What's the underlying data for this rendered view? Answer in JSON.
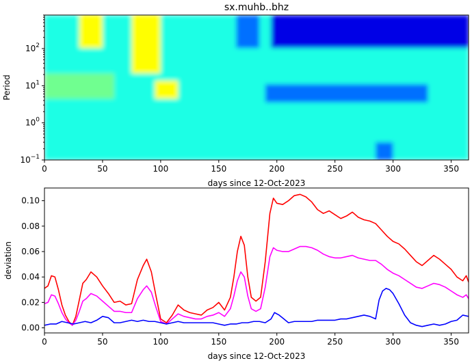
{
  "chart_data": [
    {
      "type": "heatmap",
      "title": "sx.muhb..bhz",
      "xlabel": "days since 12-Oct-2023",
      "ylabel": "Period",
      "xlim": [
        0,
        365
      ],
      "ylim": [
        0.1,
        800
      ],
      "yscale": "log",
      "x_ticks": [
        "0",
        "50",
        "100",
        "150",
        "200",
        "250",
        "300",
        "350"
      ],
      "y_ticks": [
        {
          "base": "10",
          "exp": "−1",
          "value": 0.1
        },
        {
          "base": "10",
          "exp": "0",
          "value": 1
        },
        {
          "base": "10",
          "exp": "1",
          "value": 10
        },
        {
          "base": "10",
          "exp": "2",
          "value": 100
        }
      ],
      "colormap": "jet",
      "features": [
        {
          "x": [
            30,
            50
          ],
          "period": [
            100,
            800
          ],
          "level": "high"
        },
        {
          "x": [
            75,
            100
          ],
          "period": [
            20,
            800
          ],
          "level": "high"
        },
        {
          "x": [
            0,
            60
          ],
          "period": [
            5,
            20
          ],
          "level": "slightly high"
        },
        {
          "x": [
            95,
            115
          ],
          "period": [
            5,
            15
          ],
          "level": "high"
        },
        {
          "x": [
            165,
            185
          ],
          "period": [
            100,
            800
          ],
          "level": "low"
        },
        {
          "x": [
            195,
            365
          ],
          "period": [
            100,
            800
          ],
          "level": "very low"
        },
        {
          "x": [
            190,
            330
          ],
          "period": [
            4,
            12
          ],
          "level": "low"
        },
        {
          "x": [
            285,
            300
          ],
          "period": [
            0.1,
            0.3
          ],
          "level": "low"
        }
      ]
    },
    {
      "type": "line",
      "xlabel": "days since 12-Oct-2023",
      "ylabel": "deviation",
      "xlim": [
        0,
        365
      ],
      "ylim": [
        -0.004,
        0.11
      ],
      "x_ticks": [
        "0",
        "50",
        "100",
        "150",
        "200",
        "250",
        "300",
        "350"
      ],
      "y_ticks": [
        "0.00",
        "0.02",
        "0.04",
        "0.06",
        "0.08",
        "0.10"
      ],
      "series": [
        {
          "color": "#ff0000",
          "x": [
            0,
            3,
            6,
            9,
            12,
            15,
            18,
            21,
            24,
            27,
            30,
            33,
            36,
            40,
            45,
            50,
            55,
            60,
            65,
            70,
            75,
            80,
            85,
            88,
            92,
            96,
            100,
            105,
            110,
            115,
            120,
            125,
            130,
            135,
            140,
            145,
            150,
            155,
            160,
            163,
            166,
            169,
            172,
            175,
            178,
            182,
            186,
            190,
            194,
            197,
            200,
            205,
            210,
            215,
            220,
            225,
            230,
            235,
            240,
            245,
            250,
            255,
            260,
            265,
            270,
            275,
            280,
            285,
            290,
            295,
            300,
            305,
            310,
            315,
            320,
            325,
            330,
            335,
            340,
            345,
            350,
            355,
            360,
            363,
            365
          ],
          "values": [
            0.031,
            0.033,
            0.041,
            0.04,
            0.03,
            0.018,
            0.01,
            0.005,
            0.002,
            0.009,
            0.022,
            0.035,
            0.038,
            0.044,
            0.04,
            0.033,
            0.027,
            0.02,
            0.021,
            0.018,
            0.019,
            0.038,
            0.049,
            0.054,
            0.044,
            0.025,
            0.007,
            0.004,
            0.01,
            0.018,
            0.014,
            0.012,
            0.011,
            0.01,
            0.014,
            0.016,
            0.02,
            0.014,
            0.024,
            0.04,
            0.06,
            0.072,
            0.065,
            0.04,
            0.024,
            0.021,
            0.024,
            0.052,
            0.09,
            0.102,
            0.098,
            0.097,
            0.1,
            0.104,
            0.105,
            0.103,
            0.099,
            0.093,
            0.09,
            0.092,
            0.089,
            0.086,
            0.088,
            0.091,
            0.087,
            0.085,
            0.084,
            0.082,
            0.077,
            0.072,
            0.068,
            0.066,
            0.062,
            0.057,
            0.052,
            0.049,
            0.053,
            0.057,
            0.054,
            0.05,
            0.046,
            0.04,
            0.037,
            0.041,
            0.036
          ]
        },
        {
          "color": "#ff00ff",
          "x": [
            0,
            3,
            6,
            9,
            12,
            15,
            18,
            21,
            24,
            27,
            30,
            33,
            36,
            40,
            45,
            50,
            55,
            60,
            65,
            70,
            75,
            80,
            85,
            88,
            92,
            96,
            100,
            105,
            110,
            115,
            120,
            125,
            130,
            135,
            140,
            145,
            150,
            155,
            160,
            163,
            166,
            169,
            172,
            175,
            178,
            182,
            186,
            190,
            194,
            197,
            200,
            205,
            210,
            215,
            220,
            225,
            230,
            235,
            240,
            245,
            250,
            255,
            260,
            265,
            270,
            275,
            280,
            285,
            290,
            295,
            300,
            305,
            310,
            315,
            320,
            325,
            330,
            335,
            340,
            345,
            350,
            355,
            360,
            363,
            365
          ],
          "values": [
            0.019,
            0.02,
            0.026,
            0.025,
            0.019,
            0.012,
            0.007,
            0.004,
            0.002,
            0.006,
            0.013,
            0.021,
            0.023,
            0.027,
            0.025,
            0.021,
            0.017,
            0.013,
            0.013,
            0.012,
            0.012,
            0.023,
            0.03,
            0.033,
            0.028,
            0.016,
            0.005,
            0.003,
            0.007,
            0.011,
            0.009,
            0.008,
            0.007,
            0.007,
            0.009,
            0.01,
            0.012,
            0.009,
            0.015,
            0.025,
            0.037,
            0.044,
            0.04,
            0.025,
            0.015,
            0.013,
            0.015,
            0.032,
            0.056,
            0.063,
            0.061,
            0.06,
            0.06,
            0.062,
            0.064,
            0.064,
            0.063,
            0.061,
            0.058,
            0.056,
            0.055,
            0.055,
            0.056,
            0.057,
            0.055,
            0.054,
            0.053,
            0.053,
            0.05,
            0.046,
            0.043,
            0.041,
            0.038,
            0.035,
            0.032,
            0.031,
            0.033,
            0.035,
            0.034,
            0.032,
            0.029,
            0.026,
            0.024,
            0.026,
            0.023
          ]
        },
        {
          "color": "#0000ff",
          "x": [
            0,
            5,
            10,
            15,
            20,
            25,
            30,
            35,
            40,
            45,
            50,
            55,
            60,
            65,
            70,
            75,
            80,
            85,
            90,
            95,
            100,
            105,
            110,
            115,
            120,
            125,
            130,
            135,
            140,
            145,
            150,
            155,
            160,
            165,
            170,
            175,
            180,
            185,
            190,
            195,
            198,
            202,
            206,
            210,
            215,
            220,
            225,
            230,
            235,
            240,
            245,
            250,
            255,
            260,
            265,
            270,
            275,
            280,
            285,
            288,
            291,
            294,
            297,
            300,
            305,
            310,
            315,
            320,
            325,
            330,
            335,
            340,
            345,
            350,
            355,
            360,
            365
          ],
          "values": [
            0.002,
            0.003,
            0.003,
            0.005,
            0.004,
            0.003,
            0.004,
            0.005,
            0.004,
            0.006,
            0.009,
            0.008,
            0.004,
            0.004,
            0.005,
            0.006,
            0.005,
            0.006,
            0.005,
            0.005,
            0.004,
            0.003,
            0.004,
            0.005,
            0.004,
            0.004,
            0.004,
            0.004,
            0.004,
            0.004,
            0.003,
            0.002,
            0.003,
            0.003,
            0.004,
            0.004,
            0.005,
            0.005,
            0.004,
            0.007,
            0.012,
            0.01,
            0.007,
            0.004,
            0.005,
            0.005,
            0.005,
            0.005,
            0.006,
            0.006,
            0.006,
            0.006,
            0.007,
            0.007,
            0.008,
            0.009,
            0.01,
            0.009,
            0.007,
            0.022,
            0.029,
            0.031,
            0.03,
            0.027,
            0.019,
            0.01,
            0.004,
            0.002,
            0.001,
            0.002,
            0.003,
            0.002,
            0.003,
            0.005,
            0.006,
            0.01,
            0.009
          ]
        }
      ]
    }
  ]
}
